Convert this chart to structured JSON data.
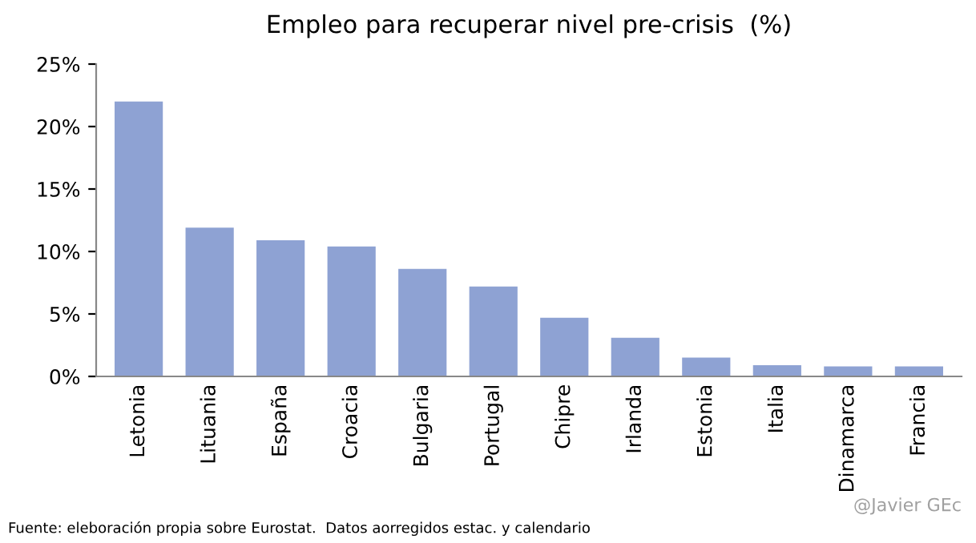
{
  "chart_data": {
    "type": "bar",
    "title": "Empleo para recuperar nivel pre-crisis  (%)",
    "categories": [
      "Letonia",
      "Lituania",
      "España",
      "Croacia",
      "Bulgaria",
      "Portugal",
      "Chipre",
      "Irlanda",
      "Estonia",
      "Italia",
      "Dinamarca",
      "Francia"
    ],
    "values": [
      22.0,
      11.9,
      10.9,
      10.4,
      8.6,
      7.2,
      4.7,
      3.1,
      1.5,
      0.9,
      0.8,
      0.8
    ],
    "color": "#8ea2d3",
    "ylim": [
      0,
      25
    ],
    "yticks": [
      {
        "value": 0,
        "label": "0%"
      },
      {
        "value": 5,
        "label": "5%"
      },
      {
        "value": 10,
        "label": "10%"
      },
      {
        "value": 15,
        "label": "15%"
      },
      {
        "value": 20,
        "label": "20%"
      },
      {
        "value": 25,
        "label": "25%"
      }
    ],
    "grid": false,
    "annotations": [
      "Fuente: eleboración propia sobre Eurostat.  Datos aorregidos estac. y calendario",
      "@Javier GEc"
    ]
  }
}
